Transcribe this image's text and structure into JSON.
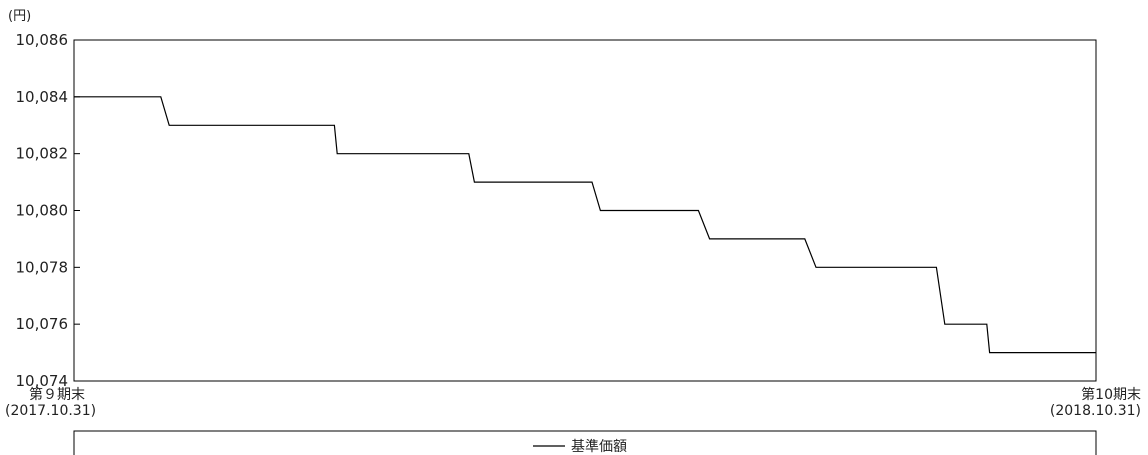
{
  "chart_data": {
    "type": "line",
    "y_unit": "(円)",
    "ylim": [
      10074,
      10086
    ],
    "y_ticks": [
      "10,074",
      "10,076",
      "10,078",
      "10,080",
      "10,082",
      "10,084",
      "10,086"
    ],
    "x_start_label": {
      "line1": "第９期末",
      "line2": "(2017.10.31)"
    },
    "x_end_label": {
      "line1": "第10期末",
      "line2": "(2018.10.31)"
    },
    "series": [
      {
        "name": "基準価額",
        "color": "#000000",
        "points": [
          {
            "x": "2017-10-31",
            "y": 10084
          },
          {
            "x": "2017-12-01",
            "y": 10084
          },
          {
            "x": "2017-12-04",
            "y": 10083
          },
          {
            "x": "2018-02-01",
            "y": 10083
          },
          {
            "x": "2018-02-02",
            "y": 10082
          },
          {
            "x": "2018-03-21",
            "y": 10082
          },
          {
            "x": "2018-03-23",
            "y": 10081
          },
          {
            "x": "2018-05-04",
            "y": 10081
          },
          {
            "x": "2018-05-07",
            "y": 10080
          },
          {
            "x": "2018-06-11",
            "y": 10080
          },
          {
            "x": "2018-06-15",
            "y": 10079
          },
          {
            "x": "2018-07-19",
            "y": 10079
          },
          {
            "x": "2018-07-23",
            "y": 10078
          },
          {
            "x": "2018-09-04",
            "y": 10078
          },
          {
            "x": "2018-09-07",
            "y": 10076
          },
          {
            "x": "2018-09-22",
            "y": 10076
          },
          {
            "x": "2018-09-23",
            "y": 10075
          },
          {
            "x": "2018-10-31",
            "y": 10075
          }
        ]
      }
    ]
  }
}
